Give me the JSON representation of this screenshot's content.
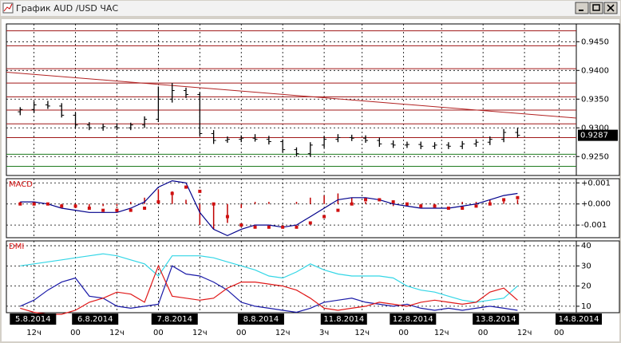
{
  "window": {
    "title": "График AUD /USD ЧАС"
  },
  "x_axis": {
    "xlim": [
      -2,
      163
    ],
    "xticks": [
      {
        "value": 6,
        "label": "12ч"
      },
      {
        "value": 18,
        "label": "00"
      },
      {
        "value": 30,
        "label": "12ч"
      },
      {
        "value": 42,
        "label": "00"
      },
      {
        "value": 54,
        "label": "12ч"
      },
      {
        "value": 66,
        "label": "00"
      },
      {
        "value": 78,
        "label": "12ч"
      },
      {
        "value": 90,
        "label": "3ч"
      },
      {
        "value": 101,
        "label": "12ч"
      },
      {
        "value": 113,
        "label": "00"
      },
      {
        "value": 124,
        "label": "12ч"
      },
      {
        "value": 136,
        "label": "00"
      },
      {
        "value": 148,
        "label": "12ч"
      },
      {
        "value": 158,
        "label": "00"
      }
    ],
    "date_ticks": [
      {
        "value": -1,
        "label": "5.8.2014"
      },
      {
        "value": 17,
        "label": "6.8.2014"
      },
      {
        "value": 40,
        "label": "7.8.2014"
      },
      {
        "value": 65,
        "label": "8.8.2014"
      },
      {
        "value": 89,
        "label": "11.8.2014"
      },
      {
        "value": 109,
        "label": "12.8.2014"
      },
      {
        "value": 133,
        "label": "13.8.2014"
      },
      {
        "value": 157,
        "label": "14.8.2014"
      }
    ]
  },
  "chart_data": [
    {
      "type": "ohlc",
      "color": "#000000",
      "x": [
        2,
        6,
        10,
        14,
        18,
        22,
        26,
        30,
        34,
        38,
        42,
        46,
        50,
        54,
        58,
        62,
        66,
        70,
        74,
        78,
        82,
        86,
        90,
        94,
        98,
        102,
        106,
        110,
        114,
        118,
        122,
        126,
        130,
        134,
        138,
        142,
        146
      ],
      "open": [
        0.9328,
        0.9332,
        0.934,
        0.9338,
        0.9322,
        0.9305,
        0.93,
        0.9302,
        0.93,
        0.9305,
        0.9315,
        0.935,
        0.9365,
        0.9358,
        0.929,
        0.9278,
        0.928,
        0.9282,
        0.928,
        0.9276,
        0.9262,
        0.9255,
        0.927,
        0.928,
        0.9283,
        0.9282,
        0.9278,
        0.9272,
        0.927,
        0.9271,
        0.9268,
        0.927,
        0.9268,
        0.9272,
        0.9275,
        0.928,
        0.9292
      ],
      "high": [
        0.9336,
        0.9346,
        0.9347,
        0.9343,
        0.9327,
        0.931,
        0.9307,
        0.9308,
        0.9309,
        0.932,
        0.9372,
        0.9378,
        0.937,
        0.9362,
        0.9296,
        0.9285,
        0.9287,
        0.9289,
        0.9286,
        0.928,
        0.9266,
        0.9275,
        0.9286,
        0.9289,
        0.9288,
        0.9287,
        0.9283,
        0.9278,
        0.9276,
        0.9276,
        0.9275,
        0.9275,
        0.9277,
        0.928,
        0.9285,
        0.9298,
        0.93
      ],
      "low": [
        0.9322,
        0.9326,
        0.9333,
        0.9318,
        0.93,
        0.9296,
        0.9295,
        0.9296,
        0.9296,
        0.93,
        0.931,
        0.9344,
        0.9352,
        0.9286,
        0.9272,
        0.9274,
        0.9275,
        0.9276,
        0.9271,
        0.9257,
        0.925,
        0.925,
        0.9265,
        0.9275,
        0.9277,
        0.9274,
        0.9267,
        0.9265,
        0.9265,
        0.9263,
        0.9263,
        0.9263,
        0.9263,
        0.9267,
        0.927,
        0.9275,
        0.9283
      ],
      "close": [
        0.9332,
        0.934,
        0.9338,
        0.9322,
        0.9305,
        0.93,
        0.9302,
        0.93,
        0.9305,
        0.9315,
        0.935,
        0.9365,
        0.9358,
        0.929,
        0.9278,
        0.928,
        0.9282,
        0.928,
        0.9276,
        0.9262,
        0.9255,
        0.927,
        0.928,
        0.9283,
        0.9282,
        0.9278,
        0.9272,
        0.927,
        0.9271,
        0.9268,
        0.927,
        0.9268,
        0.9272,
        0.9275,
        0.928,
        0.9292,
        0.9287
      ],
      "ylim": [
        0.9217,
        0.9481
      ],
      "yticks": [
        {
          "value": 0.925,
          "label": "0.9250"
        },
        {
          "value": 0.93,
          "label": "0.9300"
        },
        {
          "value": 0.935,
          "label": "0.9350"
        },
        {
          "value": 0.94,
          "label": "0.9400"
        },
        {
          "value": 0.945,
          "label": "0.9450"
        }
      ],
      "grid": true,
      "levels": [
        {
          "value": 0.9469,
          "color": "#a01818"
        },
        {
          "value": 0.9443,
          "color": "#a01818"
        },
        {
          "value": 0.9403,
          "color": "#a01818"
        },
        {
          "value": 0.9378,
          "color": "#a01818"
        },
        {
          "value": 0.9354,
          "color": "#a01818"
        },
        {
          "value": 0.9331,
          "color": "#a01818"
        },
        {
          "value": 0.9307,
          "color": "#a01818"
        },
        {
          "value": 0.9283,
          "color": "#a01818"
        },
        {
          "value": 0.9254,
          "color": "#1e7a1e"
        },
        {
          "value": 0.9233,
          "color": "#1e7a1e"
        }
      ],
      "trendline": {
        "x": [
          -2,
          163
        ],
        "y": [
          0.9397,
          0.9317
        ],
        "color": "#b22222"
      },
      "last_price": 0.9287
    },
    {
      "type": "indicator",
      "title": "MACD",
      "x": [
        2,
        6,
        10,
        14,
        18,
        22,
        26,
        30,
        34,
        38,
        42,
        46,
        50,
        54,
        58,
        62,
        66,
        70,
        74,
        78,
        82,
        86,
        90,
        94,
        98,
        102,
        106,
        110,
        114,
        118,
        122,
        126,
        130,
        134,
        138,
        142,
        146
      ],
      "ylim": [
        -0.0016,
        0.0012
      ],
      "yticks": [
        {
          "value": 0.001,
          "label": "+0.001"
        },
        {
          "value": 0,
          "label": "+0.000"
        },
        {
          "value": -0.001,
          "label": "-0.001"
        }
      ],
      "grid": true,
      "series": [
        {
          "style": "bars",
          "color": "#c00000",
          "values": [
            0.0001,
            0.0001,
            0,
            -0.0001,
            -0.0002,
            -0.0002,
            -0.0001,
            -0.0001,
            0.0001,
            0.0003,
            0.0007,
            0.0006,
            0.0002,
            -0.001,
            -0.0012,
            -0.0009,
            -0.0002,
            0.0001,
            0.0001,
            0,
            0.0001,
            0.0003,
            0.0004,
            0.0005,
            0.0003,
            0.0001,
            0,
            -0.0001,
            -0.0001,
            -0.0001,
            -0.0001,
            0,
            0.0001,
            0.0001,
            0.0002,
            0.0002,
            0.0002
          ]
        },
        {
          "style": "line",
          "color": "#00008b",
          "values": [
            0.0001,
            0.0001,
            0,
            -0.0002,
            -0.0003,
            -0.0004,
            -0.0004,
            -0.0004,
            -0.0002,
            0.0001,
            0.0008,
            0.0011,
            0.001,
            -0.0004,
            -0.0012,
            -0.0015,
            -0.0012,
            -0.001,
            -0.001,
            -0.0011,
            -0.001,
            -0.0006,
            -0.0002,
            0.0002,
            0.0003,
            0.0003,
            0.0002,
            0,
            -0.0001,
            -0.0002,
            -0.0002,
            -0.0002,
            -0.0001,
            0,
            0.0002,
            0.0004,
            0.0005
          ]
        },
        {
          "style": "dots",
          "color": "#d01010",
          "values": [
            0,
            0,
            0,
            -0.0001,
            -0.0001,
            -0.0002,
            -0.0003,
            -0.0003,
            -0.0003,
            -0.0002,
            0.0001,
            0.0005,
            0.0008,
            0.0006,
            0,
            -0.0006,
            -0.001,
            -0.0011,
            -0.0011,
            -0.0011,
            -0.0011,
            -0.0009,
            -0.0006,
            -0.0003,
            0,
            0.0002,
            0.0002,
            0.0001,
            0,
            -0.0001,
            -0.0001,
            -0.0002,
            -0.0002,
            -0.0001,
            0,
            0.0002,
            0.0003
          ]
        }
      ]
    },
    {
      "type": "indicator",
      "title": "DMI",
      "x": [
        2,
        6,
        10,
        14,
        18,
        22,
        26,
        30,
        34,
        38,
        42,
        46,
        50,
        54,
        58,
        62,
        66,
        70,
        74,
        78,
        82,
        86,
        90,
        94,
        98,
        102,
        106,
        110,
        114,
        118,
        122,
        126,
        130,
        134,
        138,
        142,
        146
      ],
      "ylim": [
        6.8,
        42.4
      ],
      "yticks": [
        10,
        20,
        30,
        40
      ],
      "grid": true,
      "series": [
        {
          "style": "line",
          "color": "#33d6e6",
          "values": [
            30,
            31,
            32,
            33,
            34,
            35,
            36,
            35,
            33,
            31,
            25,
            35,
            35,
            35,
            34,
            32,
            30,
            28,
            25,
            24,
            27,
            31,
            28,
            26,
            25,
            25,
            25,
            24,
            20,
            18,
            17,
            15,
            13,
            12,
            13,
            14,
            20
          ]
        },
        {
          "style": "line",
          "color": "#1a1aa8",
          "values": [
            10,
            13,
            18,
            22,
            24,
            15,
            14,
            10,
            9,
            10,
            11,
            30,
            26,
            25,
            22,
            18,
            12,
            10,
            9,
            8,
            7,
            9,
            12,
            13,
            14,
            12,
            11,
            10,
            11,
            9,
            8,
            9,
            8,
            9,
            10,
            9,
            8
          ]
        },
        {
          "style": "line",
          "color": "#e01818",
          "values": [
            9,
            7,
            6,
            6,
            8,
            12,
            14,
            17,
            16,
            12,
            30,
            15,
            14,
            13,
            14,
            19,
            22,
            22,
            21,
            20,
            18,
            14,
            9,
            8,
            9,
            10,
            12,
            11,
            10,
            12,
            13,
            12,
            11,
            12,
            17,
            19,
            13
          ]
        }
      ]
    }
  ]
}
